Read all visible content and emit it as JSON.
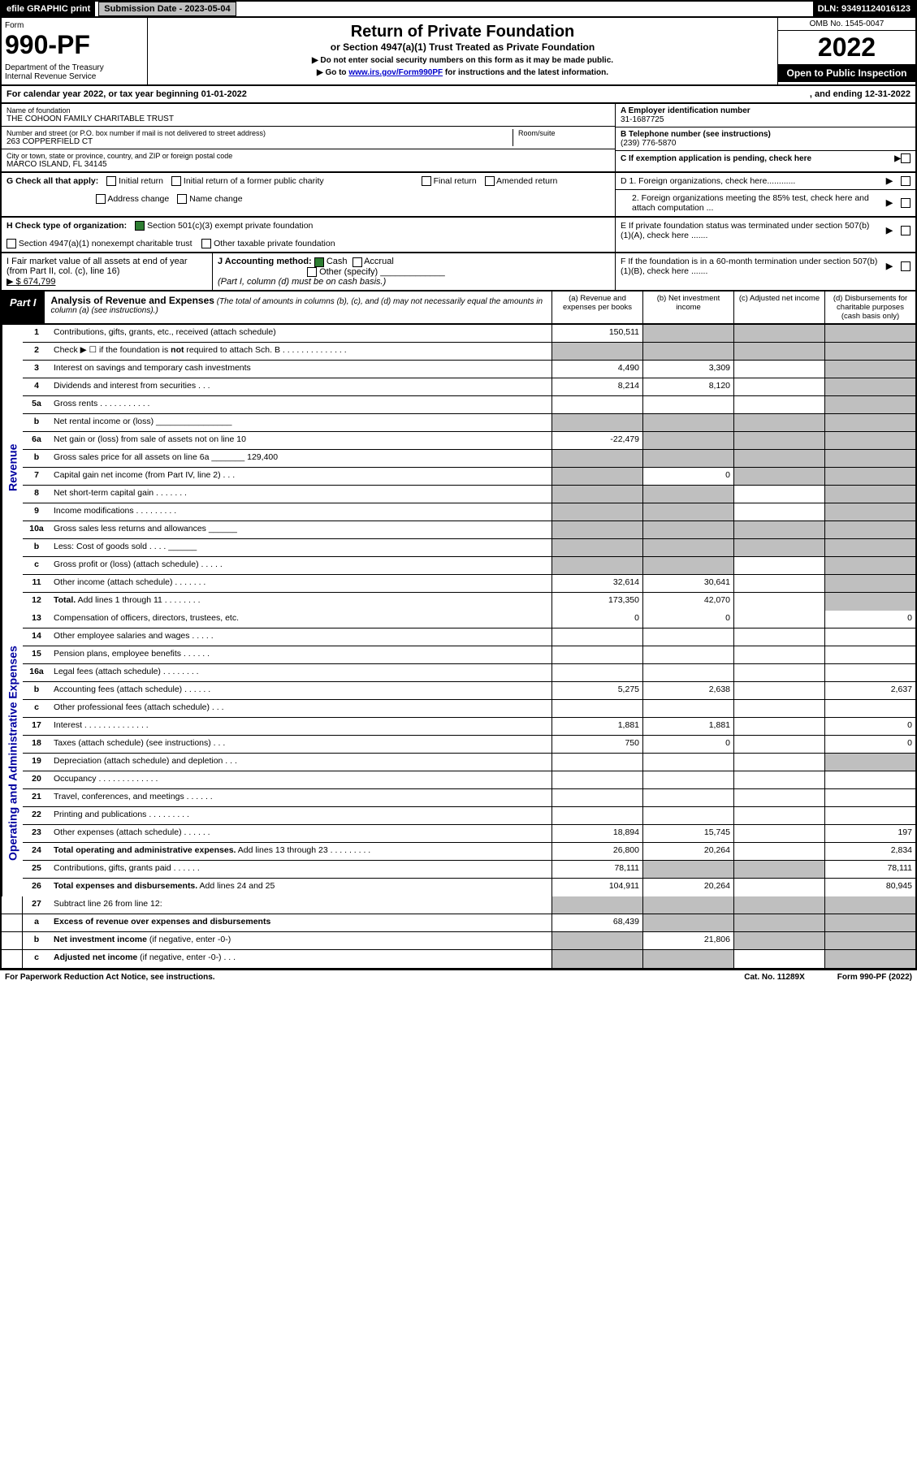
{
  "topbar": {
    "efile": "efile GRAPHIC print",
    "subdate": "Submission Date - 2023-05-04",
    "dln": "DLN: 93491124016123"
  },
  "header": {
    "form": "Form",
    "formnum": "990-PF",
    "dept": "Department of the Treasury\nInternal Revenue Service",
    "title": "Return of Private Foundation",
    "subtitle": "or Section 4947(a)(1) Trust Treated as Private Foundation",
    "note1": "▶ Do not enter social security numbers on this form as it may be made public.",
    "note2": "▶ Go to www.irs.gov/Form990PF for instructions and the latest information.",
    "omb": "OMB No. 1545-0047",
    "year": "2022",
    "open": "Open to Public Inspection"
  },
  "cal": {
    "text1": "For calendar year 2022, or tax year beginning 01-01-2022",
    "text2": ", and ending 12-31-2022"
  },
  "id": {
    "namelbl": "Name of foundation",
    "name": "THE COHOON FAMILY CHARITABLE TRUST",
    "addrlbl": "Number and street (or P.O. box number if mail is not delivered to street address)",
    "addr": "263 COPPERFIELD CT",
    "roomlbl": "Room/suite",
    "citylbl": "City or town, state or province, country, and ZIP or foreign postal code",
    "city": "MARCO ISLAND, FL  34145",
    "a_lbl": "A Employer identification number",
    "a_val": "31-1687725",
    "b_lbl": "B Telephone number (see instructions)",
    "b_val": "(239) 776-5870",
    "c_lbl": "C If exemption application is pending, check here"
  },
  "boxG": {
    "label": "G Check all that apply:",
    "opts": [
      "Initial return",
      "Initial return of a former public charity",
      "Final return",
      "Amended return",
      "Address change",
      "Name change"
    ]
  },
  "boxH": {
    "label": "H Check type of organization:",
    "opt1": "Section 501(c)(3) exempt private foundation",
    "opt2": "Section 4947(a)(1) nonexempt charitable trust",
    "opt3": "Other taxable private foundation"
  },
  "boxD": {
    "d1": "D 1. Foreign organizations, check here............",
    "d2": "2. Foreign organizations meeting the 85% test, check here and attach computation ..."
  },
  "boxE": "E  If private foundation status was terminated under section 507(b)(1)(A), check here .......",
  "boxI": {
    "label": "I Fair market value of all assets at end of year (from Part II, col. (c), line 16)",
    "val": "▶ $  674,799"
  },
  "boxJ": {
    "label": "J Accounting method:",
    "opt1": "Cash",
    "opt2": "Accrual",
    "opt3": "Other (specify)",
    "note": "(Part I, column (d) must be on cash basis.)"
  },
  "boxF": "F  If the foundation is in a 60-month termination under section 507(b)(1)(B), check here .......",
  "part1": {
    "label": "Part I",
    "title": "Analysis of Revenue and Expenses",
    "note": "(The total of amounts in columns (b), (c), and (d) may not necessarily equal the amounts in column (a) (see instructions).)",
    "cols": [
      "(a)   Revenue and expenses per books",
      "(b)   Net investment income",
      "(c)   Adjusted net income",
      "(d)   Disbursements for charitable purposes (cash basis only)"
    ]
  },
  "sidelabels": {
    "rev": "Revenue",
    "exp": "Operating and Administrative Expenses"
  },
  "rows": {
    "r1": {
      "n": "1",
      "d": "",
      "a": "150,511",
      "b": "",
      "c": "",
      "sb": true,
      "sc": true,
      "sd": true
    },
    "r2": {
      "n": "2",
      "d": "",
      "a": "",
      "b": "",
      "c": "",
      "sa": true,
      "sb": true,
      "sc": true,
      "sd": true
    },
    "r3": {
      "n": "3",
      "d": "",
      "a": "4,490",
      "b": "3,309",
      "c": "",
      "sd": true
    },
    "r4": {
      "n": "4",
      "d": "",
      "a": "8,214",
      "b": "8,120",
      "c": "",
      "sd": true
    },
    "r5a": {
      "n": "5a",
      "d": "",
      "a": "",
      "b": "",
      "c": "",
      "sd": true
    },
    "r5b": {
      "n": "b",
      "d": "",
      "a": "",
      "b": "",
      "c": "",
      "sa": true,
      "sb": true,
      "sc": true,
      "sd": true
    },
    "r6a": {
      "n": "6a",
      "d": "",
      "a": "-22,479",
      "b": "",
      "c": "",
      "sb": true,
      "sc": true,
      "sd": true
    },
    "r6b": {
      "n": "b",
      "d": "",
      "a": "",
      "b": "",
      "c": "",
      "sa": true,
      "sb": true,
      "sc": true,
      "sd": true
    },
    "r7": {
      "n": "7",
      "d": "",
      "a": "",
      "b": "0",
      "c": "",
      "sa": true,
      "sc": true,
      "sd": true
    },
    "r8": {
      "n": "8",
      "d": "",
      "a": "",
      "b": "",
      "c": "",
      "sa": true,
      "sb": true,
      "sd": true
    },
    "r9": {
      "n": "9",
      "d": "",
      "a": "",
      "b": "",
      "c": "",
      "sa": true,
      "sb": true,
      "sd": true
    },
    "r10a": {
      "n": "10a",
      "d": "",
      "a": "",
      "b": "",
      "c": "",
      "sa": true,
      "sb": true,
      "sc": true,
      "sd": true
    },
    "r10b": {
      "n": "b",
      "d": "",
      "a": "",
      "b": "",
      "c": "",
      "sa": true,
      "sb": true,
      "sc": true,
      "sd": true
    },
    "r10c": {
      "n": "c",
      "d": "",
      "a": "",
      "b": "",
      "c": "",
      "sa": true,
      "sb": true,
      "sd": true
    },
    "r11": {
      "n": "11",
      "d": "",
      "a": "32,614",
      "b": "30,641",
      "c": "",
      "sd": true
    },
    "r12": {
      "n": "12",
      "d": "",
      "a": "173,350",
      "b": "42,070",
      "c": "",
      "sd": true,
      "bold": true
    },
    "r13": {
      "n": "13",
      "d": "0",
      "a": "0",
      "b": "0",
      "c": ""
    },
    "r14": {
      "n": "14",
      "d": "",
      "a": "",
      "b": "",
      "c": ""
    },
    "r15": {
      "n": "15",
      "d": "",
      "a": "",
      "b": "",
      "c": ""
    },
    "r16a": {
      "n": "16a",
      "d": "",
      "a": "",
      "b": "",
      "c": ""
    },
    "r16b": {
      "n": "b",
      "d": "2,637",
      "a": "5,275",
      "b": "2,638",
      "c": ""
    },
    "r16c": {
      "n": "c",
      "d": "",
      "a": "",
      "b": "",
      "c": ""
    },
    "r17": {
      "n": "17",
      "d": "0",
      "a": "1,881",
      "b": "1,881",
      "c": ""
    },
    "r18": {
      "n": "18",
      "d": "0",
      "a": "750",
      "b": "0",
      "c": ""
    },
    "r19": {
      "n": "19",
      "d": "",
      "a": "",
      "b": "",
      "c": "",
      "sd": true
    },
    "r20": {
      "n": "20",
      "d": "",
      "a": "",
      "b": "",
      "c": ""
    },
    "r21": {
      "n": "21",
      "d": "",
      "a": "",
      "b": "",
      "c": ""
    },
    "r22": {
      "n": "22",
      "d": "",
      "a": "",
      "b": "",
      "c": ""
    },
    "r23": {
      "n": "23",
      "d": "197",
      "a": "18,894",
      "b": "15,745",
      "c": ""
    },
    "r24": {
      "n": "24",
      "d": "2,834",
      "a": "26,800",
      "b": "20,264",
      "c": "",
      "bold": true
    },
    "r25": {
      "n": "25",
      "d": "78,111",
      "a": "78,111",
      "b": "",
      "c": "",
      "sb": true,
      "sc": true
    },
    "r26": {
      "n": "26",
      "d": "80,945",
      "a": "104,911",
      "b": "20,264",
      "c": "",
      "bold": true
    },
    "r27": {
      "n": "27",
      "d": "",
      "a": "",
      "b": "",
      "c": "",
      "sa": true,
      "sb": true,
      "sc": true,
      "sd": true
    },
    "r27a": {
      "n": "a",
      "d": "",
      "a": "68,439",
      "b": "",
      "c": "",
      "sb": true,
      "sc": true,
      "sd": true,
      "bold": true
    },
    "r27b": {
      "n": "b",
      "d": "",
      "a": "",
      "b": "21,806",
      "c": "",
      "sa": true,
      "sc": true,
      "sd": true,
      "bold": true
    },
    "r27c": {
      "n": "c",
      "d": "",
      "a": "",
      "b": "",
      "c": "",
      "sa": true,
      "sb": true,
      "sd": true,
      "bold": true
    }
  },
  "footer": {
    "left": "For Paperwork Reduction Act Notice, see instructions.",
    "mid": "Cat. No. 11289X",
    "right": "Form 990-PF (2022)"
  }
}
